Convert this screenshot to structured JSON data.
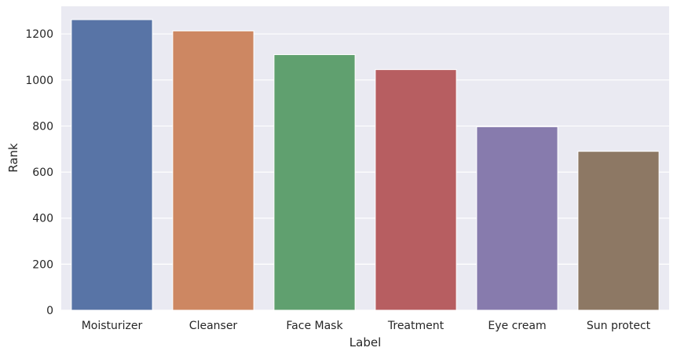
{
  "chart_data": {
    "type": "bar",
    "title": "",
    "xlabel": "Label",
    "ylabel": "Rank",
    "categories": [
      "Moisturizer",
      "Cleanser",
      "Face Mask",
      "Treatment",
      "Eye cream",
      "Sun protect"
    ],
    "values": [
      1262,
      1213,
      1110,
      1045,
      797,
      690
    ],
    "colors": [
      "#5874a6",
      "#cd8762",
      "#60a06f",
      "#b75e61",
      "#877bad",
      "#8d7864"
    ],
    "ylim": [
      0,
      1320
    ],
    "yticks": [
      0,
      200,
      400,
      600,
      800,
      1000,
      1200
    ],
    "grid": true,
    "plot_background": "#eaeaf2",
    "grid_color": "#ffffff"
  }
}
